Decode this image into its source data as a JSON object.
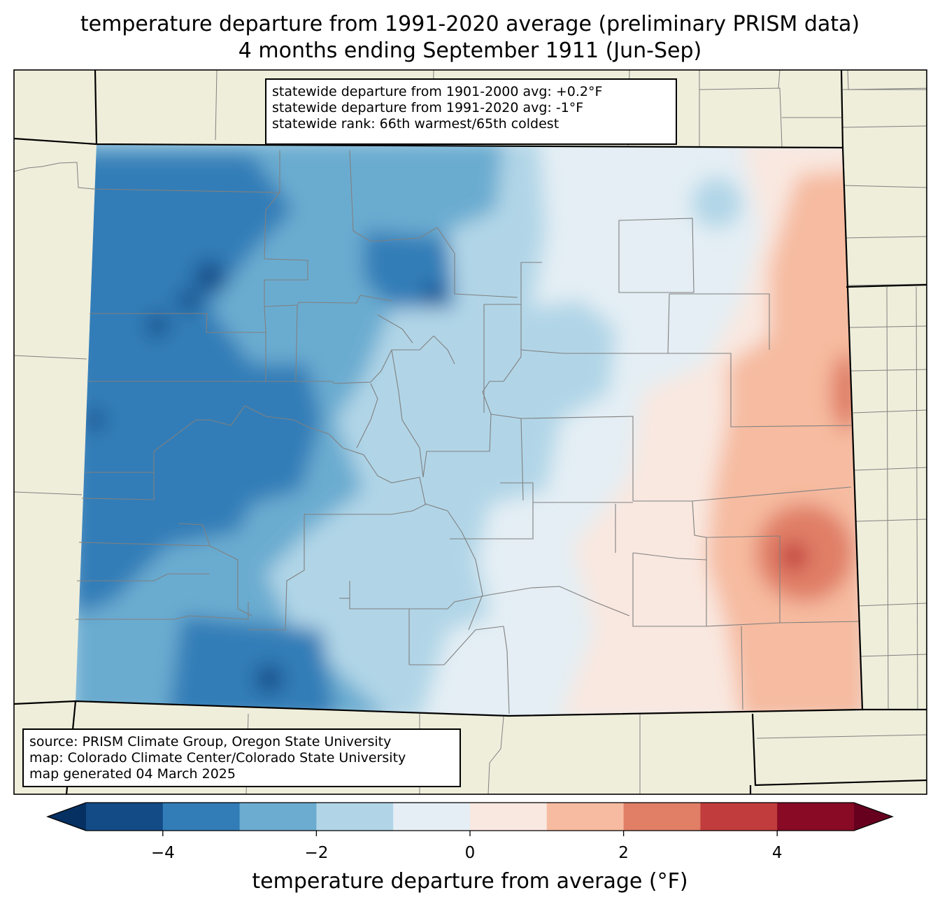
{
  "title": {
    "line1": "temperature departure from 1991-2020 average (preliminary PRISM data)",
    "line2": "4 months ending September 1911 (Jun-Sep)"
  },
  "stats": {
    "line1": "statewide departure from 1901-2000 avg: +0.2°F",
    "line2": "statewide departure from 1991-2020 avg: -1°F",
    "line3": "statewide rank: 66th warmest/65th coldest"
  },
  "credits": {
    "line1": "source: PRISM Climate Group, Oregon State University",
    "line2": "map: Colorado Climate Center/Colorado State University",
    "line3": "map generated 04 March 2025"
  },
  "colorbar": {
    "label": "temperature departure from average (°F)",
    "ticks": [
      "−4",
      "−2",
      "0",
      "2",
      "4"
    ],
    "tick_values": [
      -4,
      -2,
      0,
      2,
      4
    ],
    "range": [
      -5,
      5
    ],
    "bins": [
      {
        "from": -5,
        "to": -4,
        "color": "#134b87"
      },
      {
        "from": -4,
        "to": -3,
        "color": "#327db7"
      },
      {
        "from": -3,
        "to": -2,
        "color": "#6bacd0"
      },
      {
        "from": -2,
        "to": -1,
        "color": "#b1d5e7"
      },
      {
        "from": -1,
        "to": 0,
        "color": "#e4eef4"
      },
      {
        "from": 0,
        "to": 1,
        "color": "#f9e8e0"
      },
      {
        "from": 1,
        "to": 2,
        "color": "#f6bba0"
      },
      {
        "from": 2,
        "to": 3,
        "color": "#e07e66"
      },
      {
        "from": 3,
        "to": 4,
        "color": "#c13c3c"
      },
      {
        "from": 4,
        "to": 5,
        "color": "#880a25"
      }
    ],
    "under_color": "#053061",
    "over_color": "#67001f"
  },
  "colors": {
    "land": "#efeedb",
    "county_lines": "#808080",
    "state_lines": "#000000"
  }
}
